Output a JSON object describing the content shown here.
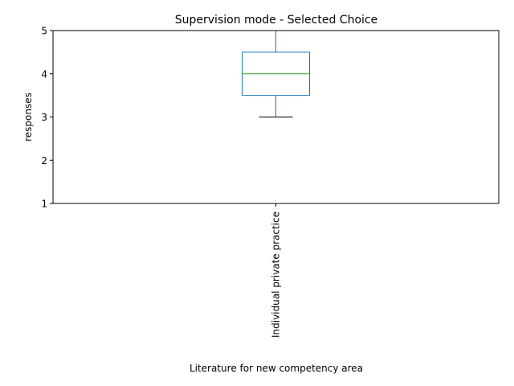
{
  "chart_data": {
    "type": "box",
    "title": "Supervision mode - Selected Choice",
    "xlabel": "Literature for new competency area",
    "ylabel": "responses",
    "categories": [
      "Individual private practice"
    ],
    "ylim": [
      1,
      5
    ],
    "yticks": [
      "1",
      "2",
      "3",
      "4",
      "5"
    ],
    "grid": false,
    "boxes": [
      {
        "category": "Individual private practice",
        "whisker_low": 3,
        "q1": 3.5,
        "median": 4,
        "q3": 4.5,
        "whisker_high": 5
      }
    ],
    "colors": {
      "box": "#1f77b4",
      "median": "#2ca02c",
      "lower_cap": "#000000",
      "axes": "#000000"
    }
  }
}
